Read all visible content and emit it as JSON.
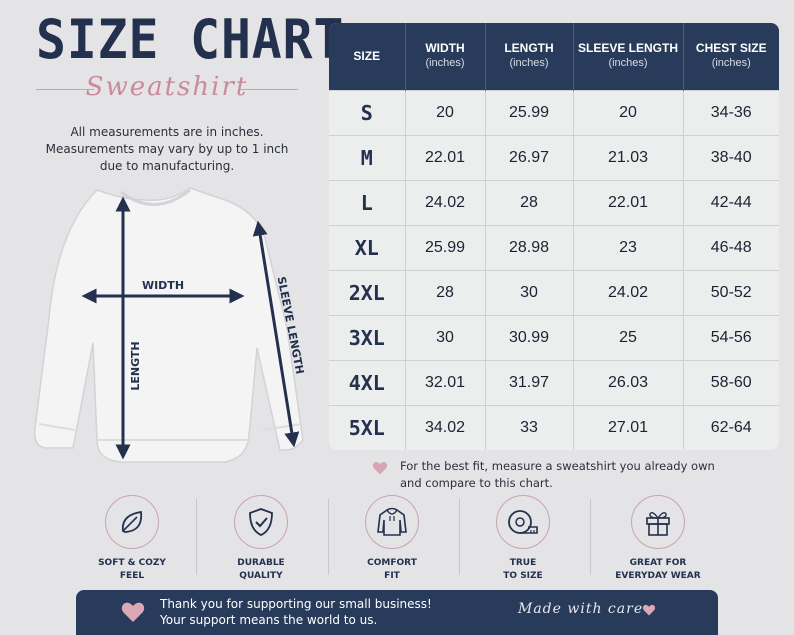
{
  "header": {
    "title": "SIZE CHART",
    "subtitle": "Sweatshirt"
  },
  "note": {
    "line1": "All measurements are in inches.",
    "line2": "Measurements may vary by up to 1 inch",
    "line3": "due to manufacturing."
  },
  "diagram": {
    "width_label": "WIDTH",
    "length_label": "LENGTH",
    "sleeve_label": "SLEEVE LENGTH"
  },
  "table": {
    "columns": [
      {
        "name": "SIZE",
        "unit": ""
      },
      {
        "name": "WIDTH",
        "unit": "(inches)"
      },
      {
        "name": "LENGTH",
        "unit": "(inches)"
      },
      {
        "name": "SLEEVE LENGTH",
        "unit": "(inches)"
      },
      {
        "name": "CHEST SIZE",
        "unit": "(inches)"
      }
    ],
    "rows": [
      [
        "S",
        "20",
        "25.99",
        "20",
        "34-36"
      ],
      [
        "M",
        "22.01",
        "26.97",
        "21.03",
        "38-40"
      ],
      [
        "L",
        "24.02",
        "28",
        "22.01",
        "42-44"
      ],
      [
        "XL",
        "25.99",
        "28.98",
        "23",
        "46-48"
      ],
      [
        "2XL",
        "28",
        "30",
        "24.02",
        "50-52"
      ],
      [
        "3XL",
        "30",
        "30.99",
        "25",
        "54-56"
      ],
      [
        "4XL",
        "32.01",
        "31.97",
        "26.03",
        "58-60"
      ],
      [
        "5XL",
        "34.02",
        "33",
        "27.01",
        "62-64"
      ]
    ]
  },
  "tip": {
    "line1": "For the best fit, measure a sweatshirt you already own",
    "line2": "and compare to this chart."
  },
  "features": [
    {
      "icon": "leaf-icon",
      "line1": "SOFT & COZY",
      "line2": "FEEL"
    },
    {
      "icon": "shield-check-icon",
      "line1": "DURABLE",
      "line2": "QUALITY"
    },
    {
      "icon": "hoodie-icon",
      "line1": "COMFORT",
      "line2": "FIT"
    },
    {
      "icon": "measuring-tape-icon",
      "line1": "TRUE",
      "line2": "TO SIZE"
    },
    {
      "icon": "gift-icon",
      "line1": "GREAT FOR",
      "line2": "EVERYDAY WEAR"
    }
  ],
  "banner": {
    "line1": "Thank you for supporting our small business!",
    "line2": "Your support means the world to us.",
    "signature": "Made with care"
  },
  "colors": {
    "navy": "#283b5a",
    "rose": "#c98a99",
    "background": "#e4e4e6"
  }
}
